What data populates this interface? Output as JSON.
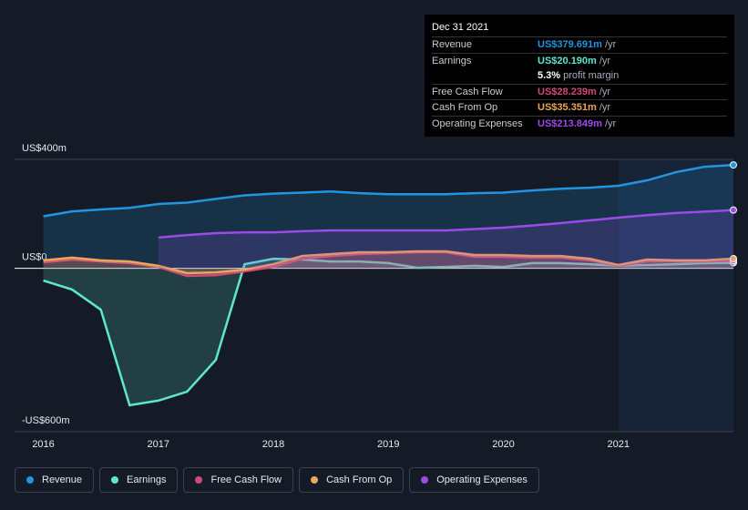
{
  "chart_data": {
    "type": "line",
    "x": [
      2016,
      2016.25,
      2016.5,
      2016.75,
      2017,
      2017.25,
      2017.5,
      2017.75,
      2018,
      2018.25,
      2018.5,
      2018.75,
      2019,
      2019.25,
      2019.5,
      2019.75,
      2020,
      2020.25,
      2020.5,
      2020.75,
      2021,
      2021.25,
      2021.5,
      2021.75,
      2022
    ],
    "series": [
      {
        "name": "Revenue",
        "color": "#2394df",
        "values": [
          191,
          209,
          216,
          222,
          236,
          241,
          255,
          268,
          274,
          278,
          282,
          276,
          272,
          272,
          272,
          276,
          278,
          286,
          292,
          296,
          303,
          323,
          353,
          373,
          379.691
        ]
      },
      {
        "name": "Earnings",
        "color": "#5ce8c9",
        "values": [
          -45,
          -78,
          -152,
          -503,
          -486,
          -453,
          -336,
          15,
          35,
          32,
          25,
          25,
          19,
          2,
          5,
          9,
          5,
          19,
          19,
          15,
          9,
          12,
          15,
          19,
          20.19
        ]
      },
      {
        "name": "Free Cash Flow",
        "color": "#d1487c",
        "values": [
          22,
          32,
          25,
          19,
          5,
          -28,
          -25,
          -11,
          5,
          35,
          45,
          52,
          56,
          59,
          59,
          42,
          42,
          39,
          39,
          29,
          9,
          25,
          25,
          25,
          28.239
        ]
      },
      {
        "name": "Cash From Op",
        "color": "#e8a85a",
        "values": [
          29,
          39,
          29,
          25,
          9,
          -18,
          -15,
          -5,
          15,
          45,
          52,
          59,
          59,
          62,
          62,
          49,
          49,
          45,
          45,
          35,
          12,
          32,
          29,
          29,
          35.351
        ]
      },
      {
        "name": "Operating Expenses",
        "color": "#9b4be8",
        "values": [
          null,
          null,
          null,
          null,
          113,
          122,
          129,
          132,
          132,
          136,
          139,
          139,
          139,
          139,
          139,
          144,
          149,
          157,
          166,
          176,
          186,
          195,
          203,
          208,
          213.849
        ]
      }
    ],
    "xlim": [
      2015.75,
      2022
    ],
    "xticks": [
      2016,
      2017,
      2018,
      2019,
      2020,
      2021
    ],
    "ylim": [
      -600,
      400
    ],
    "yticks": [
      {
        "value": 400,
        "label": "US$400m"
      },
      {
        "value": 0,
        "label": "US$0"
      },
      {
        "value": -600,
        "label": "-US$600m"
      }
    ],
    "grid": true,
    "tooltip": {
      "date": "Dec 31 2021",
      "rows": [
        {
          "label": "Revenue",
          "value": "US$379.691m",
          "unit": "/yr"
        },
        {
          "label": "Earnings",
          "value": "US$20.190m",
          "unit": "/yr"
        },
        {
          "label": "Free Cash Flow",
          "value": "US$28.239m",
          "unit": "/yr"
        },
        {
          "label": "Cash From Op",
          "value": "US$35.351m",
          "unit": "/yr"
        },
        {
          "label": "Operating Expenses",
          "value": "US$213.849m",
          "unit": "/yr"
        }
      ],
      "margin": "5.3%",
      "margin_text": "profit margin"
    }
  }
}
